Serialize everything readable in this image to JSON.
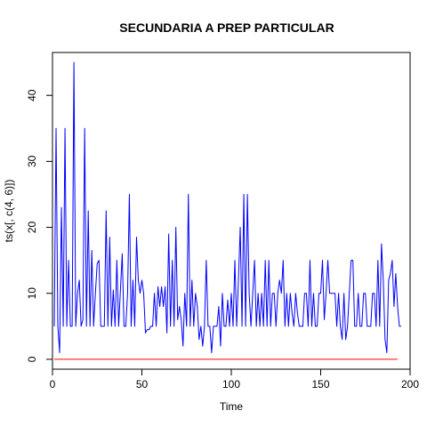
{
  "chart_data": {
    "type": "line",
    "title": "SECUNDARIA A PREP PARTICULAR",
    "xlabel": "Time",
    "ylabel": "ts(x[, c(4, 6)])",
    "xlim": [
      0,
      200
    ],
    "ylim": [
      -1.5,
      46.5
    ],
    "xticks": [
      0,
      50,
      100,
      150,
      200
    ],
    "yticks": [
      0,
      10,
      20,
      30,
      40
    ],
    "grid": false,
    "legend": "none",
    "series": [
      {
        "color": "#0000ff",
        "x_start": 1,
        "x_step": 1,
        "values": [
          5,
          35,
          5,
          1,
          23,
          5,
          35,
          5,
          15,
          5,
          5,
          45,
          5,
          10,
          12,
          5,
          6,
          35,
          5,
          22.5,
          5,
          16.5,
          5,
          10,
          14.5,
          15,
          5,
          5,
          5,
          22.5,
          5,
          18.5,
          5,
          10.5,
          5,
          15,
          5,
          10.5,
          16,
          5,
          5,
          10,
          25,
          5,
          12,
          5,
          18.5,
          12,
          10,
          12,
          10,
          4,
          4.5,
          4.5,
          5,
          5,
          10,
          5,
          11,
          8,
          11,
          8,
          11,
          4,
          19,
          5,
          15,
          5,
          20,
          6,
          8,
          6,
          2,
          10,
          5,
          25,
          5,
          12,
          5,
          10,
          8,
          3,
          5,
          2,
          5,
          15,
          5,
          5,
          1,
          5,
          5,
          5,
          8,
          2,
          10,
          5,
          5,
          9,
          5,
          10,
          5,
          15,
          5,
          12,
          20,
          5,
          25,
          5,
          25,
          10,
          5,
          10,
          15,
          5,
          10,
          5,
          10,
          5,
          15,
          5,
          15,
          5,
          10,
          10,
          5,
          10,
          12,
          10,
          15,
          5,
          10,
          5,
          10,
          7,
          5,
          10,
          7,
          5,
          5,
          5,
          10,
          10,
          5,
          15,
          5,
          10,
          5,
          5,
          10,
          10,
          15,
          6,
          10,
          15,
          10,
          10,
          10,
          10,
          5,
          10,
          5,
          3,
          10,
          3,
          5,
          10,
          15,
          15,
          5,
          5,
          10,
          5,
          5,
          10,
          10,
          5,
          5,
          5,
          10,
          10,
          5,
          15,
          5,
          17.5,
          12,
          3,
          1,
          12,
          13,
          15,
          8,
          13,
          8,
          5,
          5
        ]
      },
      {
        "color": "#ff0000",
        "x_start": 1,
        "x_step": 1,
        "values": [
          0,
          0,
          0,
          0,
          0,
          0,
          0,
          0,
          0,
          0,
          0,
          0,
          0,
          0,
          0,
          0,
          0,
          0,
          0,
          0,
          0,
          0,
          0,
          0,
          0,
          0,
          0,
          0,
          0,
          0,
          0,
          0,
          0,
          0,
          0,
          0,
          0,
          0,
          0,
          0,
          0,
          0,
          0,
          0,
          0,
          0,
          0,
          0,
          0,
          0,
          0,
          0,
          0,
          0,
          0,
          0,
          0,
          0,
          0,
          0,
          0,
          0,
          0,
          0,
          0,
          0,
          0,
          0,
          0,
          0,
          0,
          0,
          0,
          0,
          0,
          0,
          0,
          0,
          0,
          0,
          0,
          0,
          0,
          0,
          0,
          0,
          0,
          0,
          0,
          0,
          0,
          0,
          0,
          0,
          0,
          0,
          0,
          0,
          0,
          0,
          0,
          0,
          0,
          0,
          0,
          0,
          0,
          0,
          0,
          0,
          0,
          0,
          0,
          0,
          0,
          0,
          0,
          0,
          0,
          0,
          0,
          0,
          0,
          0,
          0,
          0,
          0,
          0,
          0,
          0,
          0,
          0,
          0,
          0,
          0,
          0,
          0,
          0,
          0,
          0,
          0,
          0,
          0,
          0,
          0,
          0,
          0,
          0,
          0,
          0,
          0,
          0,
          0,
          0,
          0,
          0,
          0,
          0,
          0,
          0,
          0,
          0,
          0,
          0,
          0,
          0,
          0,
          0,
          0,
          0,
          0,
          0,
          0,
          0,
          0,
          0,
          0,
          0,
          0,
          0,
          0,
          0,
          0,
          0,
          0,
          0,
          0,
          0,
          0,
          0,
          0,
          0,
          0
        ]
      }
    ]
  }
}
